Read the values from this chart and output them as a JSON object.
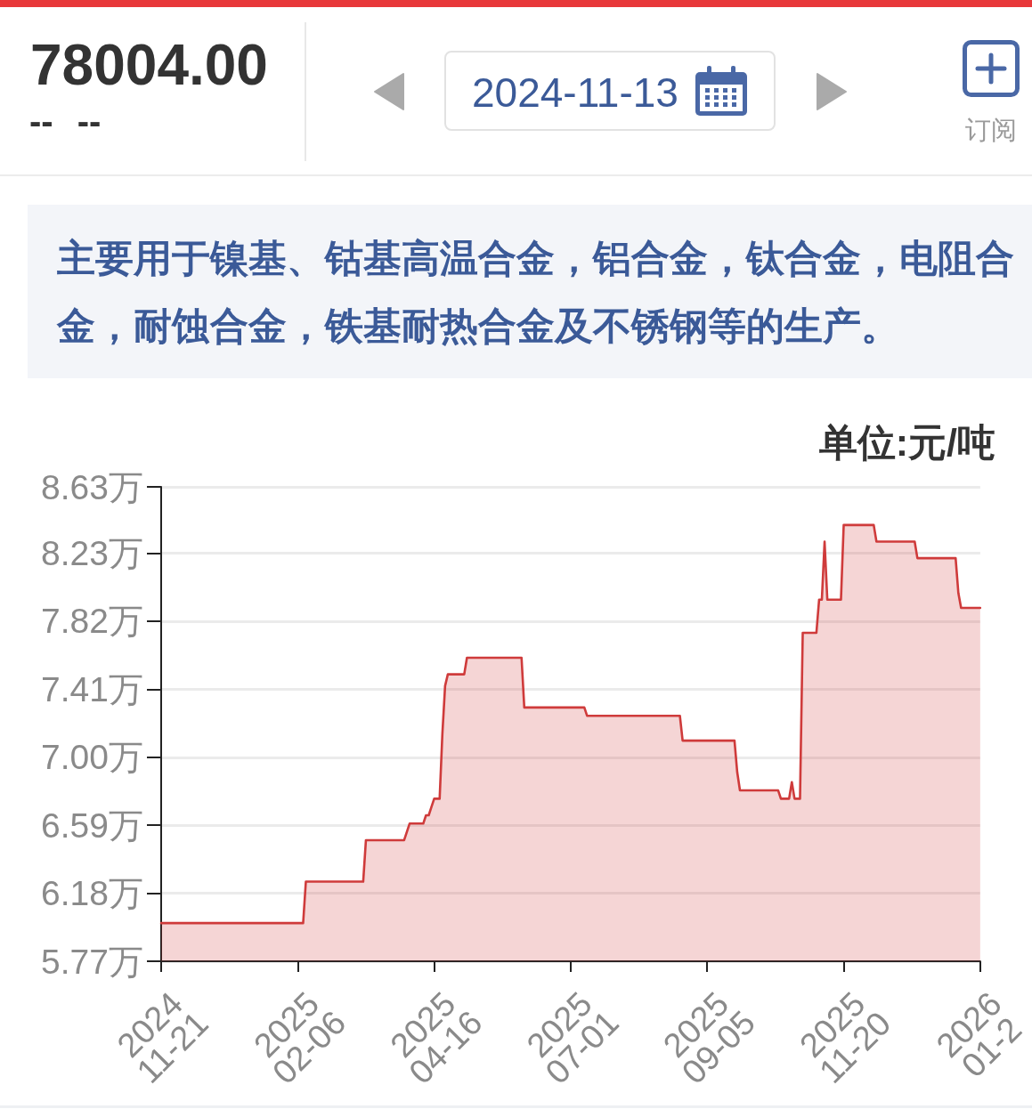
{
  "chart_data": {
    "type": "area",
    "title": "78004.00",
    "subtitle": "-- --",
    "ylabel": "单位:元/吨",
    "annotations": [
      "2024-11-13",
      "订阅",
      "主要用于镍基、钴基高温合金，铝合金，钛合金，电阻合金，耐蚀合金，铁基耐热合金及不锈钢等的生产。"
    ],
    "categories": [
      "2024\n11-21",
      null,
      null,
      null,
      null,
      null,
      null,
      null,
      null,
      null,
      null,
      null,
      null,
      null,
      null,
      null,
      null,
      null,
      null,
      null,
      null,
      null,
      null,
      null,
      null,
      null,
      null,
      null,
      null,
      null,
      null,
      null,
      null,
      null,
      null,
      null,
      null,
      null,
      null,
      null,
      null,
      null,
      null,
      null,
      null,
      null,
      null,
      null,
      null,
      null,
      "2025\n02-06",
      null,
      null,
      null,
      null,
      null,
      null,
      null,
      null,
      null,
      null,
      null,
      null,
      null,
      null,
      null,
      null,
      null,
      null,
      null,
      null,
      null,
      null,
      null,
      null,
      null,
      null,
      null,
      null,
      null,
      null,
      null,
      null,
      null,
      null,
      null,
      null,
      null,
      null,
      null,
      null,
      null,
      null,
      null,
      null,
      null,
      null,
      null,
      null,
      null,
      "2025\n04-16",
      null,
      null,
      null,
      null,
      null,
      null,
      null,
      null,
      null,
      null,
      null,
      null,
      null,
      null,
      null,
      null,
      null,
      null,
      null,
      null,
      null,
      null,
      null,
      null,
      null,
      null,
      null,
      null,
      null,
      null,
      null,
      null,
      null,
      null,
      null,
      null,
      null,
      null,
      null,
      null,
      null,
      null,
      null,
      null,
      null,
      null,
      null,
      null,
      null,
      "2025\n07-01",
      null,
      null,
      null,
      null,
      null,
      null,
      null,
      null,
      null,
      null,
      null,
      null,
      null,
      null,
      null,
      null,
      null,
      null,
      null,
      null,
      null,
      null,
      null,
      null,
      null,
      null,
      null,
      null,
      null,
      null,
      null,
      null,
      null,
      null,
      null,
      null,
      null,
      null,
      null,
      null,
      null,
      null,
      null,
      null,
      null,
      null,
      null,
      null,
      null,
      "2025\n09-05",
      null,
      null,
      null,
      null,
      null,
      null,
      null,
      null,
      null,
      null,
      null,
      null,
      null,
      null,
      null,
      null,
      null,
      null,
      null,
      null,
      null,
      null,
      null,
      null,
      null,
      null,
      null,
      null,
      null,
      null,
      null,
      null,
      null,
      null,
      null,
      null,
      null,
      null,
      null,
      null,
      null,
      null,
      null,
      null,
      null,
      null,
      null,
      null,
      null,
      "2025\n11-20",
      null,
      null,
      null,
      null,
      null,
      null,
      null,
      null,
      null,
      null,
      null,
      null,
      null,
      null,
      null,
      null,
      null,
      null,
      null,
      null,
      null,
      null,
      null,
      null,
      null,
      null,
      null,
      null,
      null,
      null,
      null,
      null,
      null,
      null,
      null,
      null,
      null,
      null,
      null,
      null,
      null,
      null,
      null,
      null,
      null,
      null,
      null,
      null,
      null,
      "2026\n01-2"
    ],
    "series": [
      {
        "color": "#cf3b3b",
        "values": [
          6,
          6,
          6,
          6,
          6,
          6,
          6,
          6,
          6,
          6,
          6,
          6,
          6,
          6,
          6,
          6,
          6,
          6,
          6,
          6,
          6,
          6,
          6,
          6,
          6,
          6,
          6,
          6,
          6,
          6,
          6,
          6,
          6,
          6,
          6,
          6,
          6,
          6,
          6,
          6,
          6,
          6,
          6,
          6,
          6,
          6,
          6,
          6,
          6,
          6,
          6,
          6,
          6,
          6.25,
          6.25,
          6.25,
          6.25,
          6.25,
          6.25,
          6.25,
          6.25,
          6.25,
          6.25,
          6.25,
          6.25,
          6.25,
          6.25,
          6.25,
          6.25,
          6.25,
          6.25,
          6.25,
          6.25,
          6.25,
          6.25,
          6.5,
          6.5,
          6.5,
          6.5,
          6.5,
          6.5,
          6.5,
          6.5,
          6.5,
          6.5,
          6.5,
          6.5,
          6.5,
          6.5,
          6.5,
          6.55,
          6.6,
          6.6,
          6.6,
          6.6,
          6.6,
          6.6,
          6.65,
          6.65,
          6.7,
          6.75,
          6.75,
          6.75,
          7.14,
          7.43,
          7.5,
          7.5,
          7.5,
          7.5,
          7.5,
          7.5,
          7.5,
          7.6,
          7.6,
          7.6,
          7.6,
          7.6,
          7.6,
          7.6,
          7.6,
          7.6,
          7.6,
          7.6,
          7.6,
          7.6,
          7.6,
          7.6,
          7.6,
          7.6,
          7.6,
          7.6,
          7.6,
          7.6,
          7.3,
          7.3,
          7.3,
          7.3,
          7.3,
          7.3,
          7.3,
          7.3,
          7.3,
          7.3,
          7.3,
          7.3,
          7.3,
          7.3,
          7.3,
          7.3,
          7.3,
          7.3,
          7.3,
          7.3,
          7.3,
          7.3,
          7.3,
          7.25,
          7.25,
          7.25,
          7.25,
          7.25,
          7.25,
          7.25,
          7.25,
          7.25,
          7.25,
          7.25,
          7.25,
          7.25,
          7.25,
          7.25,
          7.25,
          7.25,
          7.25,
          7.25,
          7.25,
          7.25,
          7.25,
          7.25,
          7.25,
          7.25,
          7.25,
          7.25,
          7.25,
          7.25,
          7.25,
          7.25,
          7.25,
          7.25,
          7.25,
          7.25,
          7.1,
          7.1,
          7.1,
          7.1,
          7.1,
          7.1,
          7.1,
          7.1,
          7.1,
          7.1,
          7.1,
          7.1,
          7.1,
          7.1,
          7.1,
          7.1,
          7.1,
          7.1,
          7.1,
          7.1,
          6.91,
          6.8,
          6.8,
          6.8,
          6.8,
          6.8,
          6.8,
          6.8,
          6.8,
          6.8,
          6.8,
          6.8,
          6.8,
          6.8,
          6.8,
          6.8,
          6.75,
          6.75,
          6.75,
          6.75,
          6.85,
          6.75,
          6.75,
          6.75,
          7.75,
          7.75,
          7.75,
          7.75,
          7.75,
          7.75,
          7.95,
          7.95,
          8.3,
          7.95,
          7.95,
          7.95,
          7.95,
          7.95,
          7.95,
          8.4,
          8.4,
          8.4,
          8.4,
          8.4,
          8.4,
          8.4,
          8.4,
          8.4,
          8.4,
          8.4,
          8.4,
          8.3,
          8.3,
          8.3,
          8.3,
          8.3,
          8.3,
          8.3,
          8.3,
          8.3,
          8.3,
          8.3,
          8.3,
          8.3,
          8.3,
          8.3,
          8.2,
          8.2,
          8.2,
          8.2,
          8.2,
          8.2,
          8.2,
          8.2,
          8.2,
          8.2,
          8.2,
          8.2,
          8.2,
          8.2,
          8.2,
          7.99,
          7.9,
          7.9,
          7.9,
          7.9,
          7.9,
          7.9,
          7.9,
          7.9
        ]
      }
    ],
    "ylim": [
      5.77,
      8.63
    ],
    "yticks": [
      {
        "value": 5.77,
        "label": "5.77万"
      },
      {
        "value": 6.18,
        "label": "6.18万"
      },
      {
        "value": 6.59,
        "label": "6.59万"
      },
      {
        "value": 7.0,
        "label": "7.00万"
      },
      {
        "value": 7.41,
        "label": "7.41万"
      },
      {
        "value": 7.82,
        "label": "7.82万"
      },
      {
        "value": 8.23,
        "label": "8.23万"
      },
      {
        "value": 8.63,
        "label": "8.63万"
      }
    ],
    "grid": "y",
    "marker": "none",
    "line_style": "solid"
  }
}
